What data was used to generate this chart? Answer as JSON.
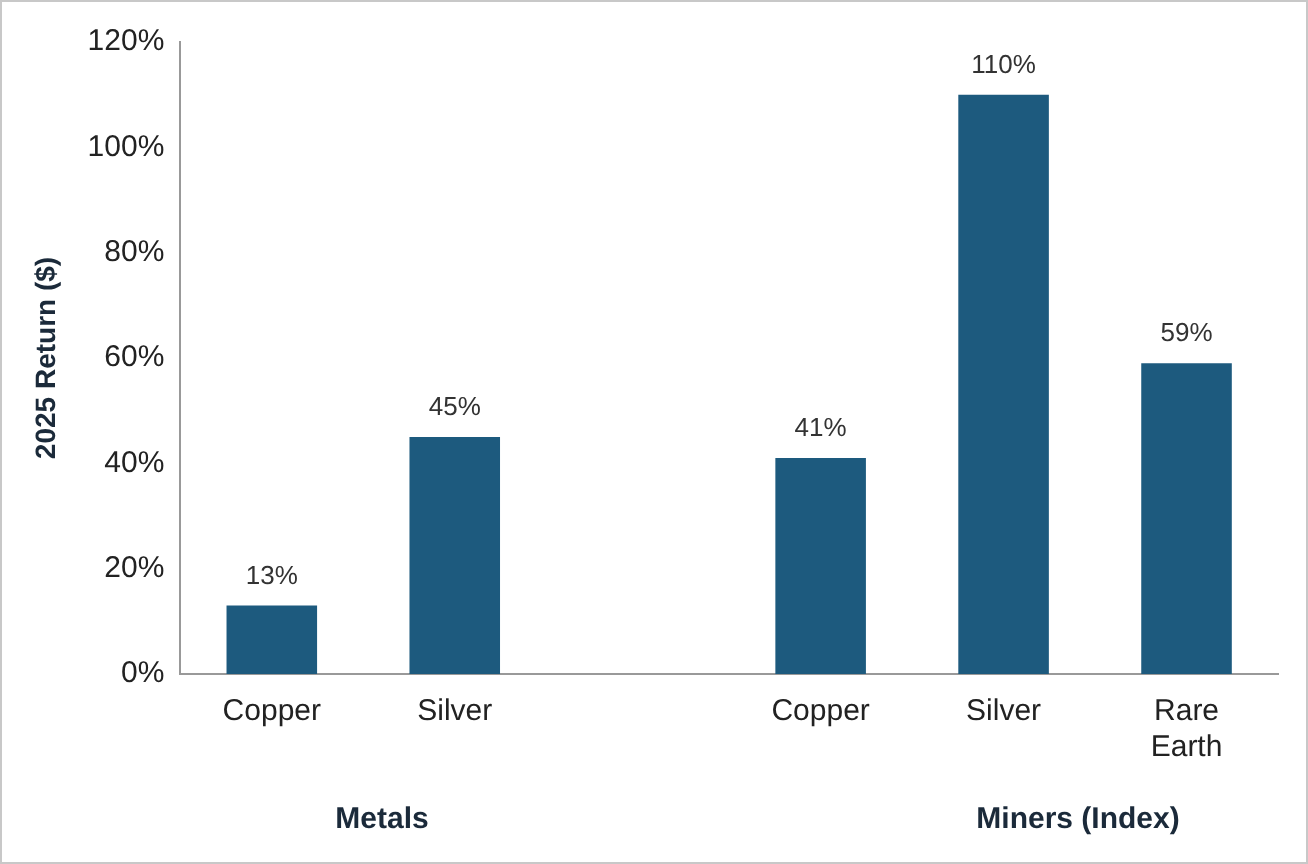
{
  "chart_data": {
    "type": "bar",
    "ylabel": "2025 Return ($)",
    "categories": [
      "Copper",
      "Silver",
      null,
      "Copper",
      "Silver",
      "Rare Earth"
    ],
    "values": [
      13,
      45,
      null,
      41,
      110,
      59
    ],
    "value_labels": [
      "13%",
      "45%",
      null,
      "41%",
      "110%",
      "59%"
    ],
    "color": "#1d5a7e",
    "ylim": [
      0,
      120
    ],
    "yticks": [
      {
        "value": 0,
        "label": "0%"
      },
      {
        "value": 20,
        "label": "20%"
      },
      {
        "value": 40,
        "label": "40%"
      },
      {
        "value": 60,
        "label": "60%"
      },
      {
        "value": 80,
        "label": "80%"
      },
      {
        "value": 100,
        "label": "100%"
      },
      {
        "value": 120,
        "label": "120%"
      }
    ],
    "grid": false,
    "legend": false,
    "annotations": [
      "Metals",
      "Miners (Index)"
    ]
  }
}
